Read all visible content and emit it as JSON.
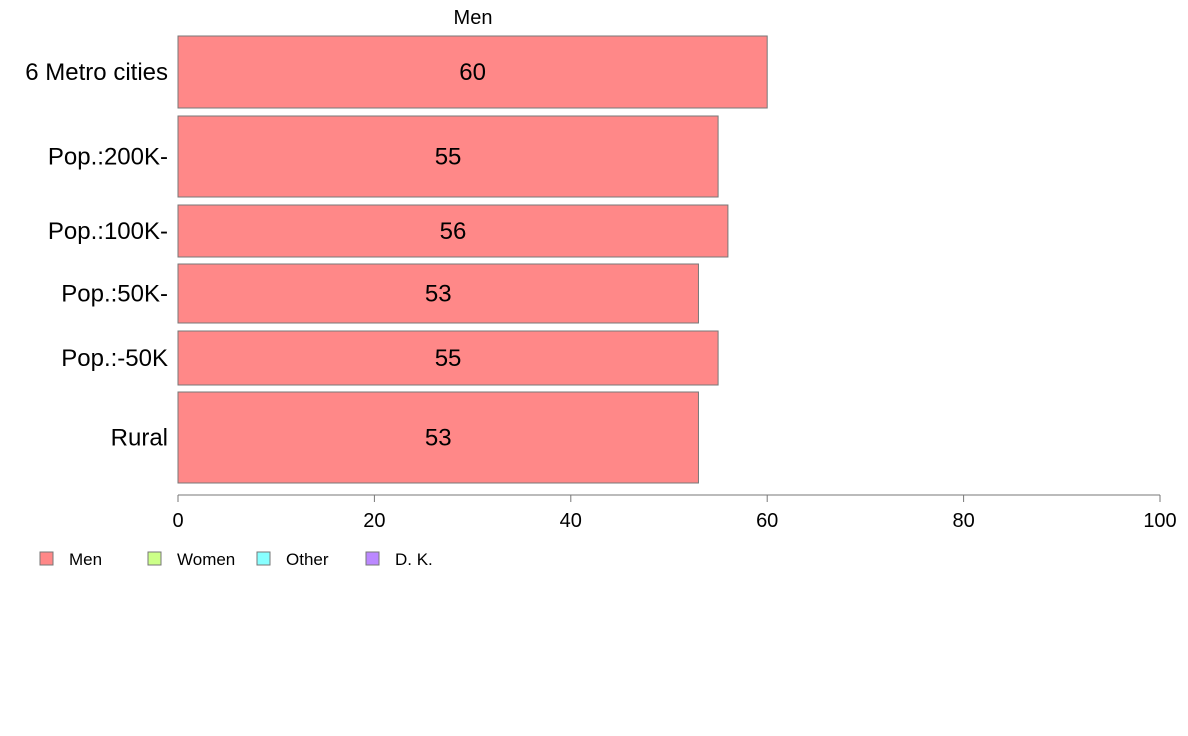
{
  "chart_data": {
    "type": "bar",
    "orientation": "horizontal",
    "title": "Men",
    "xlabel": "",
    "ylabel": "",
    "categories": [
      "6 Metro cities",
      "Pop.:200K-",
      "Pop.:100K-",
      "Pop.:50K-",
      "Pop.:-50K",
      "Rural"
    ],
    "series": [
      {
        "name": "Men",
        "values": [
          60,
          55,
          56,
          53,
          55,
          53
        ],
        "color": "#ff8888"
      }
    ],
    "data_labels": [
      "60",
      "55",
      "56",
      "53",
      "55",
      "53"
    ],
    "xlim": [
      0,
      100
    ],
    "xticks": [
      0,
      20,
      40,
      60,
      80,
      100
    ],
    "grid": false,
    "legend_position": "bottom-left",
    "legend": [
      {
        "label": "Men",
        "color": "#ff8888"
      },
      {
        "label": "Women",
        "color": "#ccff88"
      },
      {
        "label": "Other",
        "color": "#88ffff"
      },
      {
        "label": "D. K.",
        "color": "#bb88ff"
      }
    ]
  }
}
